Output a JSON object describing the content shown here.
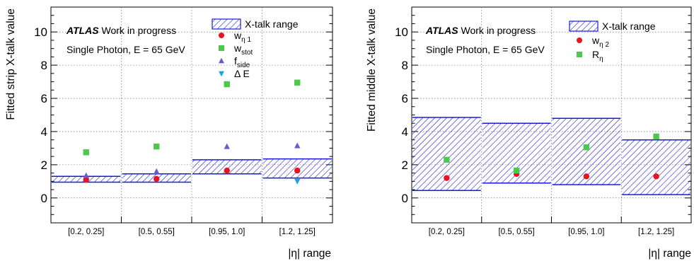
{
  "chart_data": [
    {
      "type": "scatter",
      "ylabel": "Fitted strip X-talk value",
      "xlabel": "|η| range",
      "ylim": [
        -1.5,
        11.5
      ],
      "yticks": [
        0,
        2,
        4,
        6,
        8,
        10
      ],
      "grid": true,
      "categories": [
        "[0.2, 0.25]",
        "[0.5, 0.55]",
        "[0.95, 1.0]",
        "[1.2, 1.25]"
      ],
      "annotation": {
        "atlas": "ATLAS",
        "status": "Work in progress",
        "sub": "Single Photon, E = 65 GeV"
      },
      "band": {
        "name": "X-talk range",
        "color": "#1a1adb",
        "ranges": [
          [
            0.95,
            1.3
          ],
          [
            0.95,
            1.45
          ],
          [
            1.45,
            2.3
          ],
          [
            1.2,
            2.35
          ]
        ]
      },
      "series": [
        {
          "name": "w",
          "sub": "η 1",
          "marker": "circle",
          "color": "#e8131e",
          "values": [
            1.1,
            1.15,
            1.65,
            1.65
          ]
        },
        {
          "name": "w",
          "sub": "stot",
          "marker": "square",
          "color": "#4cc94c",
          "values": [
            2.75,
            3.1,
            6.85,
            6.95
          ]
        },
        {
          "name": "f",
          "sub": "side",
          "marker": "triangle-up",
          "color": "#6a5acd",
          "values": [
            1.35,
            1.6,
            3.1,
            3.15
          ]
        },
        {
          "name": "Δ E",
          "sub": "",
          "marker": "triangle-down",
          "color": "#1aa3e0",
          "values": [
            null,
            null,
            null,
            1.0
          ]
        }
      ]
    },
    {
      "type": "scatter",
      "ylabel": "Fitted middle X-talk value",
      "xlabel": "|η| range",
      "ylim": [
        -1.5,
        11.5
      ],
      "yticks": [
        0,
        2,
        4,
        6,
        8,
        10
      ],
      "grid": true,
      "categories": [
        "[0.2, 0.25]",
        "[0.5, 0.55]",
        "[0.95, 1.0]",
        "[1.2, 1.25]"
      ],
      "annotation": {
        "atlas": "ATLAS",
        "status": "Work in progress",
        "sub": "Single Photon, E = 65 GeV"
      },
      "band": {
        "name": "X-talk range",
        "color": "#1a1adb",
        "ranges": [
          [
            0.45,
            4.85
          ],
          [
            0.9,
            4.5
          ],
          [
            0.8,
            4.8
          ],
          [
            0.2,
            3.5
          ]
        ]
      },
      "series": [
        {
          "name": "w",
          "sub": "η 2",
          "marker": "circle",
          "color": "#e8131e",
          "values": [
            1.2,
            1.45,
            1.3,
            1.3
          ]
        },
        {
          "name": "R",
          "sub": "η",
          "marker": "square",
          "color": "#4cc94c",
          "values": [
            2.3,
            1.65,
            3.05,
            3.7
          ]
        }
      ]
    }
  ]
}
